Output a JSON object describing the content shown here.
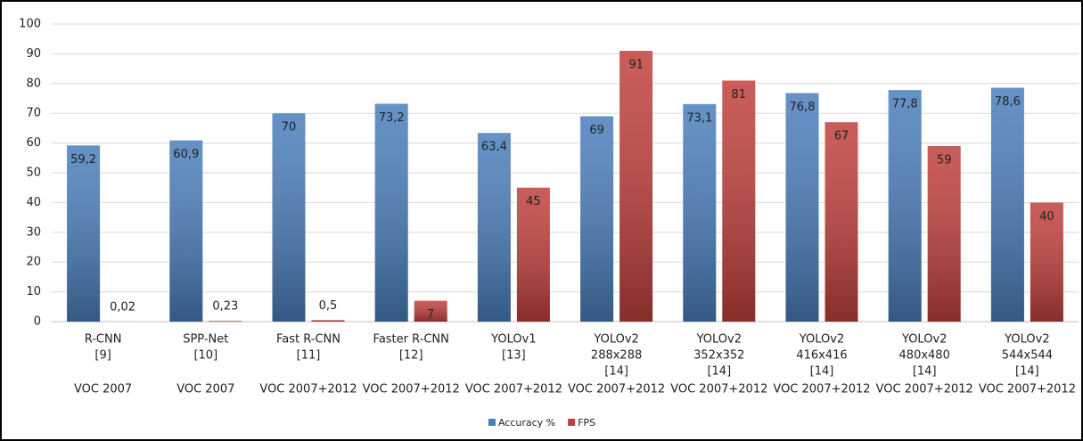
{
  "chart_data": {
    "type": "bar",
    "categories": [
      {
        "lines": [
          "R-CNN",
          "[9]"
        ],
        "dataset": "VOC 2007"
      },
      {
        "lines": [
          "SPP-Net",
          "[10]"
        ],
        "dataset": "VOC 2007"
      },
      {
        "lines": [
          "Fast R-CNN",
          "[11]"
        ],
        "dataset": "VOC 2007+2012"
      },
      {
        "lines": [
          "Faster R-CNN",
          "[12]"
        ],
        "dataset": "VOC 2007+2012"
      },
      {
        "lines": [
          "YOLOv1",
          "[13]"
        ],
        "dataset": "VOC 2007+2012"
      },
      {
        "lines": [
          "YOLOv2",
          "288x288",
          "[14]"
        ],
        "dataset": "VOC 2007+2012"
      },
      {
        "lines": [
          "YOLOv2",
          "352x352",
          "[14]"
        ],
        "dataset": "VOC 2007+2012"
      },
      {
        "lines": [
          "YOLOv2",
          "416x416",
          "[14]"
        ],
        "dataset": "VOC 2007+2012"
      },
      {
        "lines": [
          "YOLOv2",
          "480x480",
          "[14]"
        ],
        "dataset": "VOC 2007+2012"
      },
      {
        "lines": [
          "YOLOv2",
          "544x544",
          "[14]"
        ],
        "dataset": "VOC 2007+2012"
      }
    ],
    "series": [
      {
        "name": "Accuracy %",
        "color": "#4a7ebb",
        "values": [
          59.2,
          60.9,
          70,
          73.2,
          63.4,
          69,
          73.1,
          76.8,
          77.8,
          78.6
        ],
        "value_labels": [
          "59,2",
          "60,9",
          "70",
          "73,2",
          "63,4",
          "69",
          "73,1",
          "76,8",
          "77,8",
          "78,6"
        ]
      },
      {
        "name": "FPS",
        "color": "#c0403c",
        "values": [
          0.02,
          0.23,
          0.5,
          7,
          45,
          91,
          81,
          67,
          59,
          40
        ],
        "value_labels": [
          "0,02",
          "0,23",
          "0,5",
          "7",
          "45",
          "91",
          "81",
          "67",
          "59",
          "40"
        ]
      }
    ],
    "ylim": [
      0,
      100
    ],
    "yticks": [
      0,
      10,
      20,
      30,
      40,
      50,
      60,
      70,
      80,
      90,
      100
    ],
    "grid": true,
    "legend": "bottom"
  }
}
